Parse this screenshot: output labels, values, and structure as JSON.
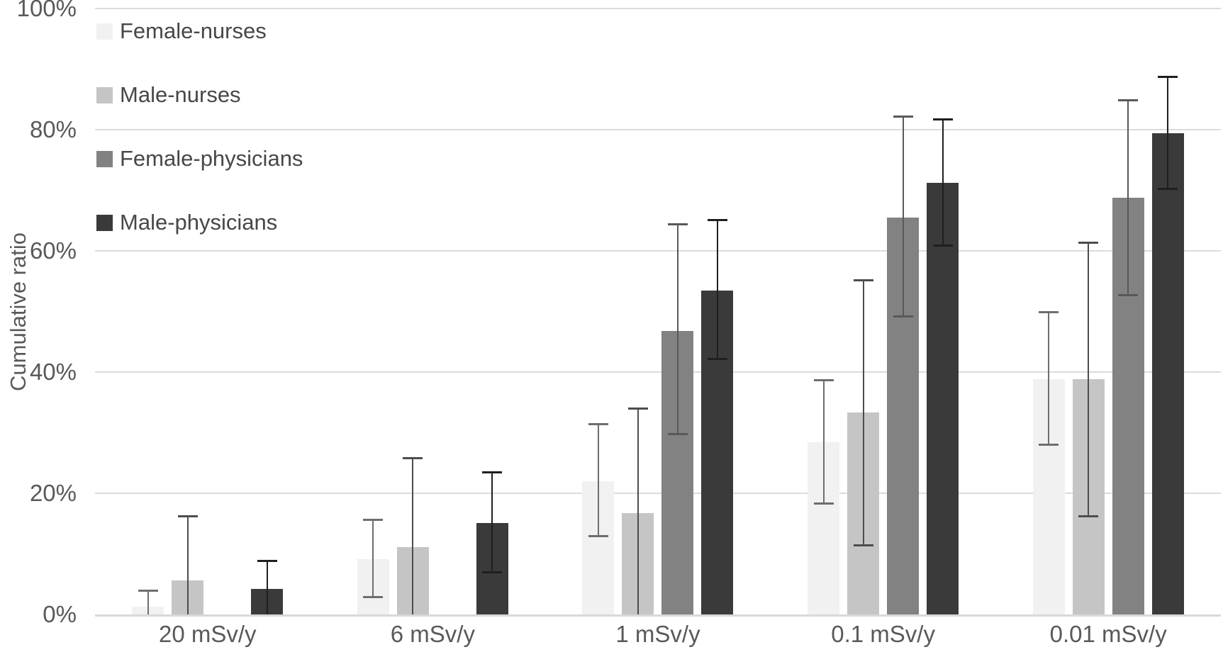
{
  "chart_data": {
    "type": "bar",
    "title": "",
    "xlabel": "",
    "ylabel": "Cumulative ratio",
    "ylim": [
      0,
      100
    ],
    "yticks": [
      0,
      20,
      40,
      60,
      80,
      100
    ],
    "ytick_labels": [
      "0%",
      "20%",
      "40%",
      "60%",
      "80%",
      "100%"
    ],
    "grid": true,
    "legend_position": "top-left-inside",
    "categories": [
      "20 mSv/y",
      "6 mSv/y",
      "1 mSv/y",
      "0.1 mSv/y",
      "0.01 mSv/y"
    ],
    "series": [
      {
        "name": "Female-nurses",
        "color": "#f1f1f1",
        "error_color": "#6e6e6e",
        "values": [
          1.3,
          9.1,
          22.0,
          28.4,
          38.8
        ],
        "error_low": [
          0,
          2.8,
          12.9,
          18.3,
          28.0
        ],
        "error_high": [
          3.9,
          15.6,
          31.4,
          38.6,
          49.8
        ]
      },
      {
        "name": "Male-nurses",
        "color": "#c5c5c5",
        "error_color": "#4d4d4d",
        "values": [
          5.6,
          11.1,
          16.7,
          33.3,
          38.8
        ],
        "error_low": [
          0,
          0,
          0,
          11.3,
          16.2
        ],
        "error_high": [
          16.2,
          25.7,
          33.9,
          55.1,
          61.3
        ]
      },
      {
        "name": "Female-physicians",
        "color": "#828282",
        "error_color": "#595959",
        "values": [
          0,
          0,
          46.8,
          65.5,
          68.8
        ],
        "error_low": [
          null,
          null,
          29.7,
          49.1,
          52.6
        ],
        "error_high": [
          null,
          null,
          64.3,
          82.1,
          84.8
        ]
      },
      {
        "name": "Male-physicians",
        "color": "#3a3a3a",
        "error_color": "#1f1f1f",
        "values": [
          4.2,
          15.1,
          53.5,
          71.2,
          79.4
        ],
        "error_low": [
          0,
          6.9,
          42.1,
          60.8,
          70.2
        ],
        "error_high": [
          8.8,
          23.4,
          65.0,
          81.6,
          88.7
        ]
      }
    ]
  }
}
